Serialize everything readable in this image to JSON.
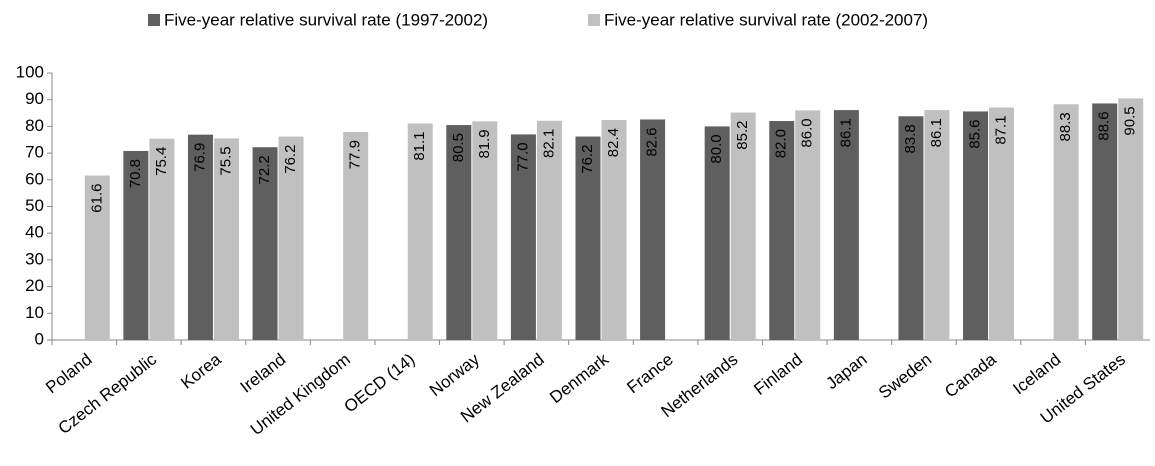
{
  "chart_data": {
    "type": "bar",
    "categories": [
      "Poland",
      "Czech Republic",
      "Korea",
      "Ireland",
      "United Kingdom",
      "OECD (14)",
      "Norway",
      "New Zealand",
      "Denmark",
      "France",
      "Netherlands",
      "Finland",
      "Japan",
      "Sweden",
      "Canada",
      "Iceland",
      "United States"
    ],
    "series": [
      {
        "name": "Five-year relative survival rate (1997-2002)",
        "color": "#5f5f5f",
        "values": [
          null,
          70.8,
          76.9,
          72.2,
          null,
          null,
          80.5,
          77.0,
          76.2,
          82.6,
          80.0,
          82.0,
          86.1,
          83.8,
          85.6,
          null,
          88.6
        ],
        "value_labels": [
          null,
          "70.8",
          "76.9",
          "72.2",
          null,
          null,
          "80.5",
          "77.0",
          "76.2",
          "82.6",
          "80.0",
          "82.0",
          "86.1",
          "83.8",
          "85.6",
          null,
          "88.6"
        ]
      },
      {
        "name": "Five-year relative survival rate (2002-2007)",
        "color": "#c0c0c0",
        "values": [
          61.6,
          75.4,
          75.5,
          76.2,
          77.9,
          81.1,
          81.9,
          82.1,
          82.4,
          null,
          85.2,
          86.0,
          null,
          86.1,
          87.1,
          88.3,
          90.5
        ],
        "value_labels": [
          "61.6",
          "75.4",
          "75.5",
          "76.2",
          "77.9",
          "81.1",
          "81.9",
          "82.1",
          "82.4",
          null,
          "85.2",
          "86.0",
          null,
          "86.1",
          "87.1",
          "88.3",
          "90.5"
        ]
      }
    ],
    "ylim": [
      0,
      100
    ],
    "yticks": [
      0,
      10,
      20,
      30,
      40,
      50,
      60,
      70,
      80,
      90,
      100
    ]
  }
}
